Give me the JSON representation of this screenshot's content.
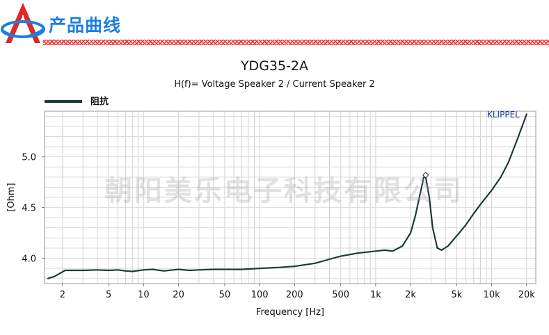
{
  "header": {
    "brand_title": "产品曲线",
    "logo_icon": "triangle-logo-icon",
    "colors": {
      "logo_red": "#e02828",
      "logo_blue": "#1a7fe0",
      "divider": "#e53434"
    }
  },
  "watermark": "朝阳美乐电子科技有限公司",
  "brand_mark": "KLIPPEL",
  "chart_data": {
    "type": "line",
    "title": "YDG35-2A",
    "subtitle": "H(f)= Voltage Speaker 2 / Current Speaker 2",
    "xlabel": "Frequency [Hz]",
    "ylabel": "[Ohm]",
    "x_scale": "log",
    "xlim": [
      1.4,
      24000
    ],
    "ylim": [
      3.75,
      5.45
    ],
    "grid": true,
    "legend_position": "top-left",
    "x_ticks": [
      {
        "value": 2,
        "label": "2"
      },
      {
        "value": 5,
        "label": "5"
      },
      {
        "value": 10,
        "label": "10"
      },
      {
        "value": 20,
        "label": "20"
      },
      {
        "value": 50,
        "label": "50"
      },
      {
        "value": 100,
        "label": "100"
      },
      {
        "value": 200,
        "label": "200"
      },
      {
        "value": 500,
        "label": "500"
      },
      {
        "value": 1000,
        "label": "1k"
      },
      {
        "value": 2000,
        "label": "2k"
      },
      {
        "value": 5000,
        "label": "5k"
      },
      {
        "value": 10000,
        "label": "10k"
      },
      {
        "value": 20000,
        "label": "20k"
      }
    ],
    "y_ticks": [
      {
        "value": 4.0,
        "label": "4.0"
      },
      {
        "value": 4.5,
        "label": "4.5"
      },
      {
        "value": 5.0,
        "label": "5.0"
      }
    ],
    "series": [
      {
        "name": "阻抗",
        "color": "#1f3a3a",
        "x": [
          1.5,
          1.7,
          1.9,
          2.1,
          2.5,
          3,
          4,
          5,
          6,
          7,
          8,
          10,
          12,
          15,
          18,
          20,
          25,
          30,
          40,
          50,
          70,
          100,
          150,
          200,
          300,
          400,
          500,
          700,
          1000,
          1200,
          1400,
          1700,
          2000,
          2200,
          2400,
          2600,
          2700,
          2900,
          3100,
          3400,
          3700,
          4200,
          5000,
          6000,
          7000,
          8000,
          10000,
          12000,
          14000,
          17000,
          20000
        ],
        "y": [
          3.8,
          3.82,
          3.85,
          3.88,
          3.88,
          3.88,
          3.885,
          3.88,
          3.885,
          3.875,
          3.87,
          3.885,
          3.89,
          3.875,
          3.885,
          3.89,
          3.88,
          3.885,
          3.89,
          3.89,
          3.89,
          3.9,
          3.91,
          3.92,
          3.95,
          3.99,
          4.02,
          4.05,
          4.07,
          4.08,
          4.07,
          4.12,
          4.25,
          4.42,
          4.62,
          4.8,
          4.8,
          4.6,
          4.3,
          4.1,
          4.08,
          4.12,
          4.22,
          4.33,
          4.44,
          4.53,
          4.67,
          4.8,
          4.95,
          5.2,
          5.42
        ]
      }
    ],
    "marker": {
      "x": 2700,
      "y": 4.82
    }
  }
}
